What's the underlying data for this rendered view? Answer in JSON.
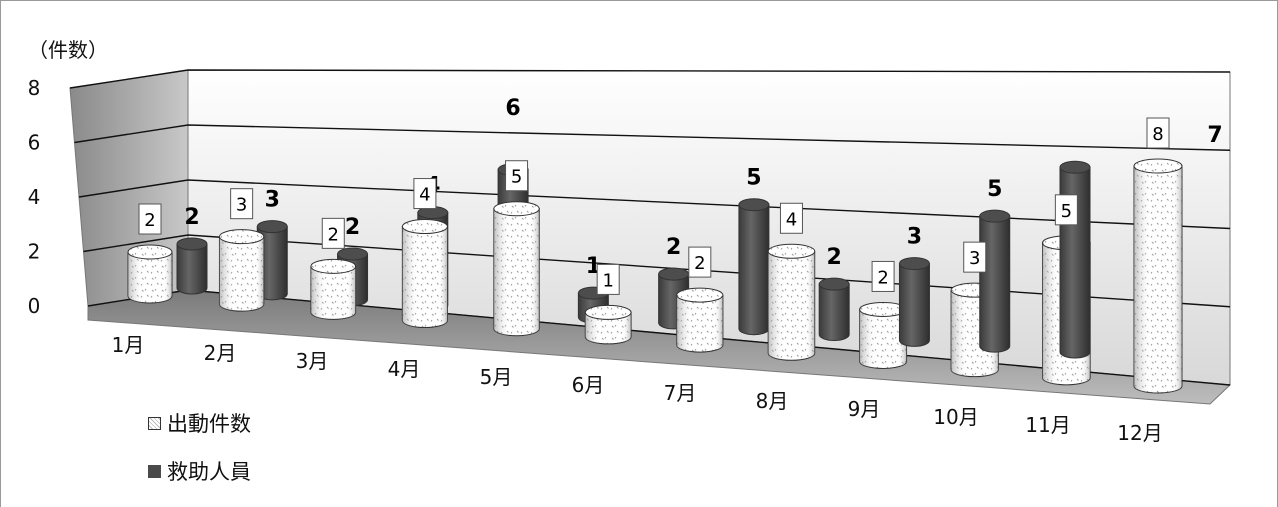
{
  "chart_data": {
    "type": "bar",
    "ylabel": "（件数）",
    "ylim": [
      0,
      8
    ],
    "yticks": [
      0,
      2,
      4,
      6,
      8
    ],
    "categories": [
      "1月",
      "2月",
      "3月",
      "4月",
      "5月",
      "6月",
      "7月",
      "8月",
      "9月",
      "10月",
      "11月",
      "12月"
    ],
    "series": [
      {
        "name": "出動件数",
        "values": [
          2,
          3,
          2,
          4,
          5,
          1,
          2,
          4,
          2,
          3,
          5,
          8
        ]
      },
      {
        "name": "救助人員",
        "values": [
          2,
          3,
          2,
          4,
          6,
          1,
          2,
          5,
          2,
          3,
          5,
          7
        ]
      }
    ],
    "legend": "bottom-left",
    "grid": true,
    "bar_shape": "3d-cylinder"
  }
}
